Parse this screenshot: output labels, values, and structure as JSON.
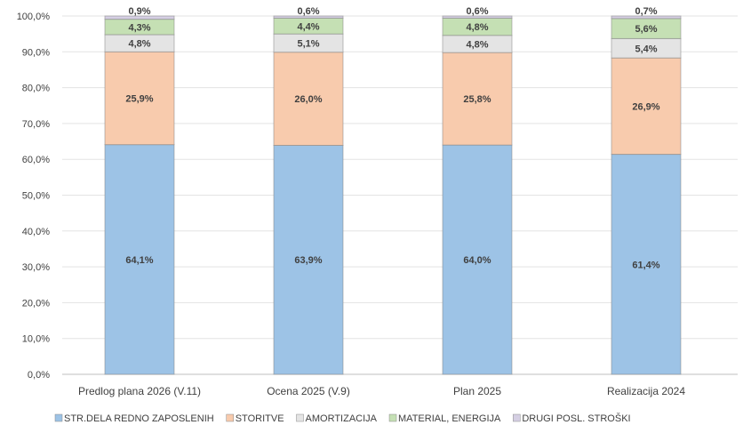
{
  "chart_data": {
    "type": "bar",
    "stacked": true,
    "categories": [
      "Predlog plana 2026 (V.11)",
      "Ocena 2025 (V.9)",
      "Plan 2025",
      "Realizacija 2024"
    ],
    "series": [
      {
        "name": "STR.DELA REDNO ZAPOSLENIH",
        "color": "#9dc3e6",
        "values": [
          64.1,
          63.9,
          64.0,
          61.4
        ],
        "labels": [
          "64,1%",
          "63,9%",
          "64,0%",
          "61,4%"
        ]
      },
      {
        "name": "STORITVE",
        "color": "#f8cbad",
        "values": [
          25.9,
          26.0,
          25.8,
          26.9
        ],
        "labels": [
          "25,9%",
          "26,0%",
          "25,8%",
          "26,9%"
        ]
      },
      {
        "name": "AMORTIZACIJA",
        "color": "#e4e4e4",
        "values": [
          4.8,
          5.1,
          4.8,
          5.4
        ],
        "labels": [
          "4,8%",
          "5,1%",
          "4,8%",
          "5,4%"
        ]
      },
      {
        "name": "MATERIAL, ENERGIJA",
        "color": "#c5e0b4",
        "values": [
          4.3,
          4.4,
          4.8,
          5.6
        ],
        "labels": [
          "4,3%",
          "4,4%",
          "4,8%",
          "5,6%"
        ]
      },
      {
        "name": "DRUGI POSL. STROŠKI",
        "color": "#d5cfe3",
        "values": [
          0.9,
          0.6,
          0.6,
          0.7
        ],
        "labels": [
          "0,9%",
          "0,6%",
          "0,6%",
          "0,7%"
        ]
      }
    ],
    "yticks": [
      "0,0%",
      "10,0%",
      "20,0%",
      "30,0%",
      "40,0%",
      "50,0%",
      "60,0%",
      "70,0%",
      "80,0%",
      "90,0%",
      "100,0%"
    ],
    "ylim": [
      0,
      100
    ],
    "grid": true,
    "legend": "bottom",
    "title": "",
    "xlabel": "",
    "ylabel": ""
  }
}
